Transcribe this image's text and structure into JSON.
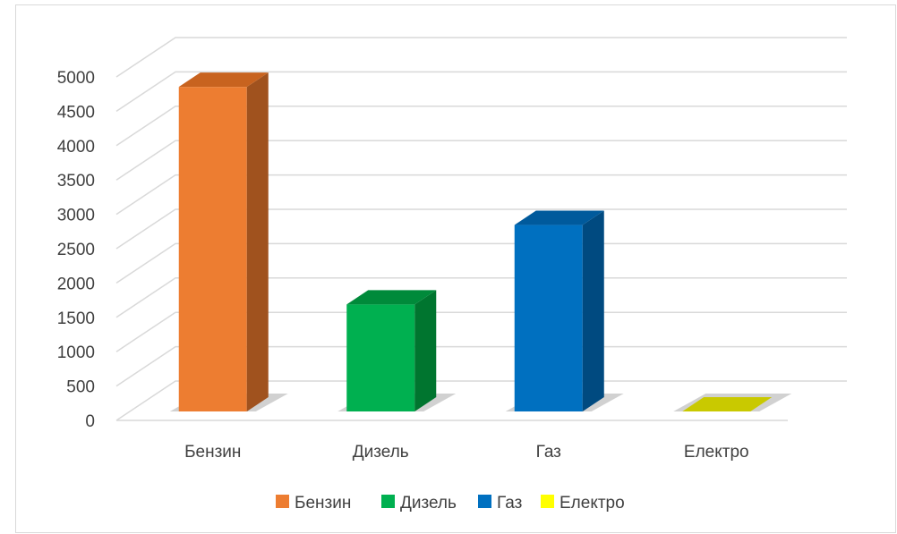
{
  "chart_data": {
    "type": "bar",
    "style": "3d-column",
    "categories": [
      "Бензин",
      "Дизель",
      "Газ",
      "Електро"
    ],
    "values": [
      4700,
      1550,
      2700,
      0
    ],
    "ylim": [
      0,
      5000
    ],
    "yticks": [
      0,
      500,
      1000,
      1500,
      2000,
      2500,
      3000,
      3500,
      4000,
      4500,
      5000
    ],
    "grid": true,
    "legend_position": "bottom",
    "legend": [
      "Бензин",
      "Дизель",
      "Газ",
      "Електро"
    ],
    "colors": [
      "#ED7D31",
      "#00B050",
      "#0070C0",
      "#FFFF00"
    ],
    "side_colors": [
      "#A0521E",
      "#00752F",
      "#004A80",
      "#BFBF00"
    ],
    "top_colors": [
      "#C8631F",
      "#008A3A",
      "#005A9C",
      "#C9C900"
    ],
    "title": "",
    "xlabel": "",
    "ylabel": ""
  }
}
